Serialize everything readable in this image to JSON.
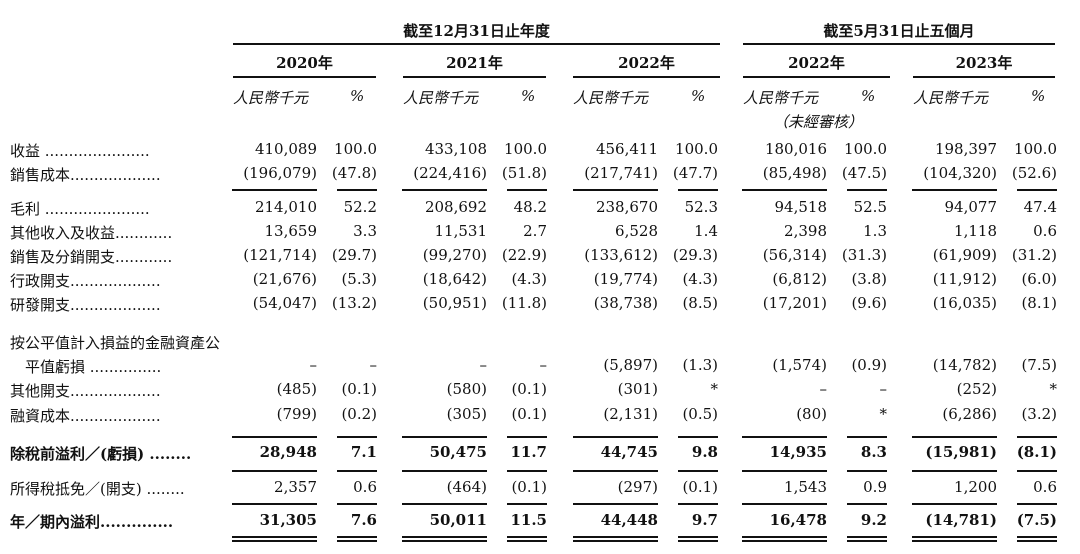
{
  "header": {
    "group_1": "截至12月31日止年度",
    "group_2": "截至5月31日止五個月",
    "years": [
      "2020年",
      "2021年",
      "2022年",
      "2022年",
      "2023年"
    ],
    "unit_amount": "人民幣千元",
    "unit_pct": "%",
    "unaudited": "（未經審核）"
  },
  "rows": [
    {
      "label": "收益 ......................",
      "bold": false,
      "values": [
        "410,089",
        "100.0",
        "433,108",
        "100.0",
        "456,411",
        "100.0",
        "180,016",
        "100.0",
        "198,397",
        "100.0"
      ]
    },
    {
      "label": "銷售成本...................",
      "bold": false,
      "values": [
        "(196,079)",
        "(47.8)",
        "(224,416)",
        "(51.8)",
        "(217,741)",
        "(47.7)",
        "(85,498)",
        "(47.5)",
        "(104,320)",
        "(52.6)"
      ]
    },
    {
      "label": "毛利 ......................",
      "bold": false,
      "values": [
        "214,010",
        "52.2",
        "208,692",
        "48.2",
        "238,670",
        "52.3",
        "94,518",
        "52.5",
        "94,077",
        "47.4"
      ]
    },
    {
      "label": "其他收入及收益............",
      "bold": false,
      "values": [
        "13,659",
        "3.3",
        "11,531",
        "2.7",
        "6,528",
        "1.4",
        "2,398",
        "1.3",
        "1,118",
        "0.6"
      ]
    },
    {
      "label": "銷售及分銷開支............",
      "bold": false,
      "values": [
        "(121,714)",
        "(29.7)",
        "(99,270)",
        "(22.9)",
        "(133,612)",
        "(29.3)",
        "(56,314)",
        "(31.3)",
        "(61,909)",
        "(31.2)"
      ]
    },
    {
      "label": "行政開支...................",
      "bold": false,
      "values": [
        "(21,676)",
        "(5.3)",
        "(18,642)",
        "(4.3)",
        "(19,774)",
        "(4.3)",
        "(6,812)",
        "(3.8)",
        "(11,912)",
        "(6.0)"
      ]
    },
    {
      "label": "研發開支...................",
      "bold": false,
      "values": [
        "(54,047)",
        "(13.2)",
        "(50,951)",
        "(11.8)",
        "(38,738)",
        "(8.5)",
        "(17,201)",
        "(9.6)",
        "(16,035)",
        "(8.1)"
      ]
    },
    {
      "label": "按公平值計入損益的金融資產公",
      "bold": false,
      "values": [
        "",
        "",
        "",
        "",
        "",
        "",
        "",
        "",
        "",
        ""
      ]
    },
    {
      "label": "　平值虧損 ...............",
      "bold": false,
      "values": [
        "–",
        "–",
        "–",
        "–",
        "(5,897)",
        "(1.3)",
        "(1,574)",
        "(0.9)",
        "(14,782)",
        "(7.5)"
      ]
    },
    {
      "label": "其他開支...................",
      "bold": false,
      "values": [
        "(485)",
        "(0.1)",
        "(580)",
        "(0.1)",
        "(301)",
        "*",
        "–",
        "–",
        "(252)",
        "*"
      ]
    },
    {
      "label": "融資成本...................",
      "bold": false,
      "values": [
        "(799)",
        "(0.2)",
        "(305)",
        "(0.1)",
        "(2,131)",
        "(0.5)",
        "(80)",
        "*",
        "(6,286)",
        "(3.2)"
      ]
    },
    {
      "label": "除稅前溢利／(虧損) ........",
      "bold": true,
      "values": [
        "28,948",
        "7.1",
        "50,475",
        "11.7",
        "44,745",
        "9.8",
        "14,935",
        "8.3",
        "(15,981)",
        "(8.1)"
      ]
    },
    {
      "label": "所得稅抵免／(開支) ........",
      "bold": false,
      "values": [
        "2,357",
        "0.6",
        "(464)",
        "(0.1)",
        "(297)",
        "(0.1)",
        "1,543",
        "0.9",
        "1,200",
        "0.6"
      ]
    },
    {
      "label": "年／期內溢利..............",
      "bold": true,
      "values": [
        "31,305",
        "7.6",
        "50,011",
        "11.5",
        "44,448",
        "9.7",
        "16,478",
        "9.2",
        "(14,781)",
        "(7.5)"
      ]
    }
  ]
}
